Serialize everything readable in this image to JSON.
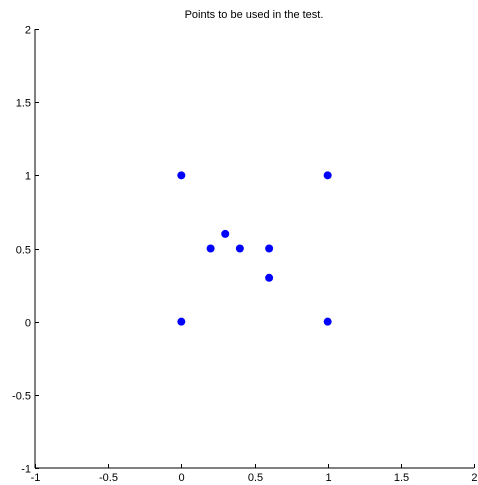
{
  "chart_data": {
    "type": "scatter",
    "title": "Points to be used in the test.",
    "xlabel": "",
    "ylabel": "",
    "xlim": [
      -1,
      2
    ],
    "ylim": [
      -1,
      2
    ],
    "xticks": [
      -1,
      -0.5,
      0,
      0.5,
      1,
      1.5,
      2
    ],
    "yticks": [
      -1,
      -0.5,
      0,
      0.5,
      1,
      1.5,
      2
    ],
    "xtick_labels": [
      "-1",
      "-0.5",
      "0",
      "0.5",
      "1",
      "1.5",
      "2"
    ],
    "ytick_labels": [
      "-1",
      "-0.5",
      "0",
      "0.5",
      "1",
      "1.5",
      "2"
    ],
    "grid": false,
    "marker_color": "#0000ff",
    "series": [
      {
        "points": [
          {
            "x": 0,
            "y": 1
          },
          {
            "x": 1,
            "y": 1
          },
          {
            "x": 0.3,
            "y": 0.6
          },
          {
            "x": 0.2,
            "y": 0.5
          },
          {
            "x": 0.4,
            "y": 0.5
          },
          {
            "x": 0.6,
            "y": 0.5
          },
          {
            "x": 0.6,
            "y": 0.3
          },
          {
            "x": 0,
            "y": 0
          },
          {
            "x": 1,
            "y": 0
          }
        ]
      }
    ]
  }
}
